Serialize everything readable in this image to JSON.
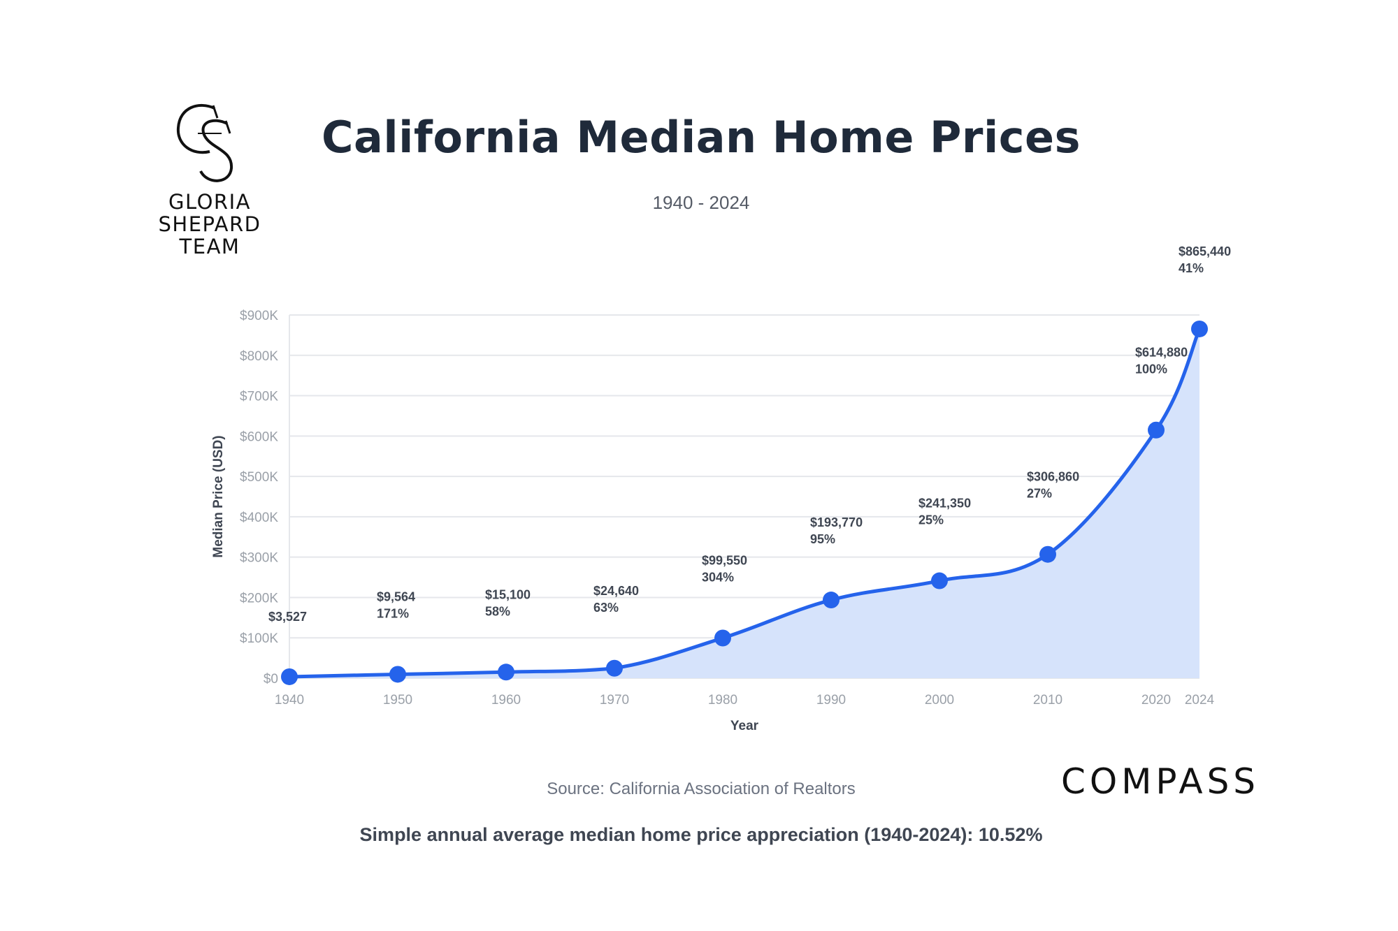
{
  "logo": {
    "monogram": "GS",
    "line1": "GLORIA",
    "line2": "SHEPARD",
    "line3": "TEAM"
  },
  "header": {
    "title": "California Median Home Prices",
    "subtitle": "1940 - 2024"
  },
  "footer": {
    "source": "Source: California Association of Realtors",
    "summary": "Simple annual average median home price appreciation (1940-2024): 10.52%",
    "brand": "COMPASS"
  },
  "chart_data": {
    "type": "area",
    "title": "California Median Home Prices",
    "subtitle": "1940 - 2024",
    "xlabel": "Year",
    "ylabel": "Median Price (USD)",
    "ylim": [
      0,
      900000
    ],
    "yticks": [
      "$0",
      "$100K",
      "$200K",
      "$300K",
      "$400K",
      "$500K",
      "$600K",
      "$700K",
      "$800K",
      "$900K"
    ],
    "categories": [
      "1940",
      "1950",
      "1960",
      "1970",
      "1980",
      "1990",
      "2000",
      "2010",
      "2020",
      "2024"
    ],
    "x": [
      1940,
      1950,
      1960,
      1970,
      1980,
      1990,
      2000,
      2010,
      2020,
      2024
    ],
    "values": [
      3527,
      9564,
      15100,
      24640,
      99550,
      193770,
      241350,
      306860,
      614880,
      865440
    ],
    "price_labels": [
      "$3,527",
      "$9,564",
      "$15,100",
      "$24,640",
      "$99,550",
      "$193,770",
      "$241,350",
      "$306,860",
      "$614,880",
      "$865,440"
    ],
    "pct_labels": [
      "",
      "171%",
      "58%",
      "63%",
      "304%",
      "95%",
      "25%",
      "27%",
      "100%",
      "41%"
    ],
    "grid": true,
    "colors": {
      "line": "#2563eb",
      "fill": "#d6e3fb",
      "grid": "#e5e7eb"
    }
  }
}
